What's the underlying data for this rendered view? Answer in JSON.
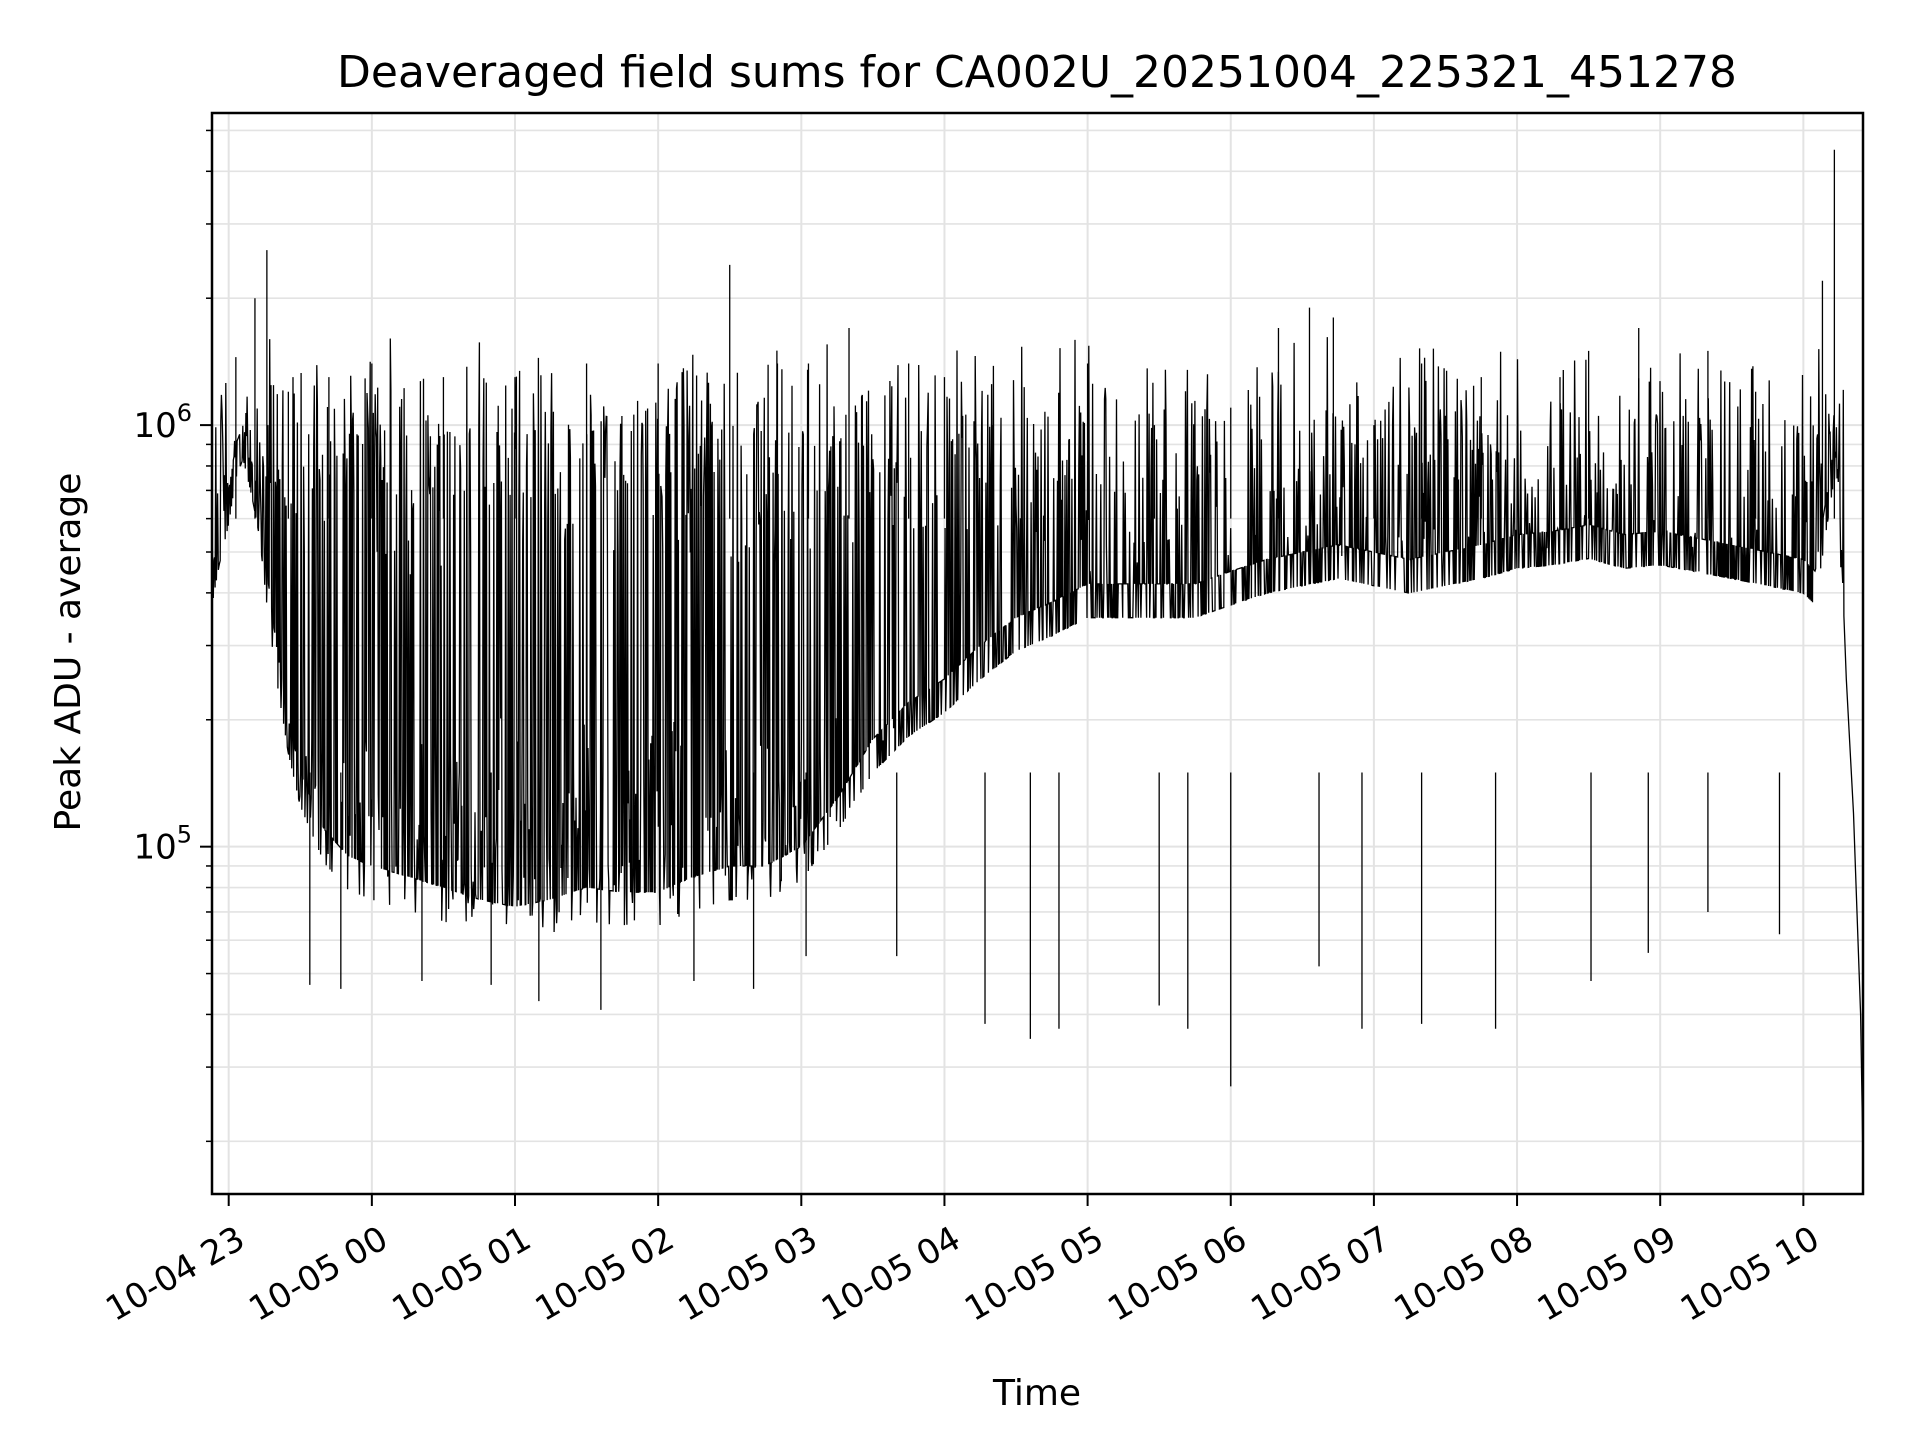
{
  "chart_data": {
    "type": "line",
    "title": "Deaveraged field sums for CA002U_20251004_225321_451278",
    "xlabel": "Time",
    "ylabel": "Peak ADU - average",
    "x_axis": "time",
    "xlim": [
      "2025-10-04 22:53",
      "2025-10-05 10:25"
    ],
    "y_scale": "log",
    "ylim": [
      15000,
      5500000
    ],
    "grid": true,
    "line_color": "#000000",
    "x_ticks": [
      {
        "label": "10-04 23",
        "value": "2025-10-04 23:00"
      },
      {
        "label": "10-05 00",
        "value": "2025-10-05 00:00"
      },
      {
        "label": "10-05 01",
        "value": "2025-10-05 01:00"
      },
      {
        "label": "10-05 02",
        "value": "2025-10-05 02:00"
      },
      {
        "label": "10-05 03",
        "value": "2025-10-05 03:00"
      },
      {
        "label": "10-05 04",
        "value": "2025-10-05 04:00"
      },
      {
        "label": "10-05 05",
        "value": "2025-10-05 05:00"
      },
      {
        "label": "10-05 06",
        "value": "2025-10-05 06:00"
      },
      {
        "label": "10-05 07",
        "value": "2025-10-05 07:00"
      },
      {
        "label": "10-05 08",
        "value": "2025-10-05 08:00"
      },
      {
        "label": "10-05 09",
        "value": "2025-10-05 09:00"
      },
      {
        "label": "10-05 10",
        "value": "2025-10-05 10:00"
      }
    ],
    "y_ticks": [
      {
        "base": "10",
        "exp": "5",
        "value": 100000
      },
      {
        "base": "10",
        "exp": "6",
        "value": 1000000
      }
    ],
    "series": [
      {
        "points": [
          [
            "2025-10-04 22:53",
            450000
          ],
          [
            "2025-10-04 22:56",
            560000
          ],
          [
            "2025-10-04 23:00",
            700000
          ],
          [
            "2025-10-04 23:03",
            900000
          ],
          [
            "2025-10-04 23:06",
            1000000
          ],
          [
            "2025-10-04 23:10",
            800000
          ],
          [
            "2025-10-04 23:13",
            650000
          ],
          [
            "2025-10-04 23:16",
            450000
          ],
          [
            "2025-10-04 23:20",
            300000
          ],
          [
            "2025-10-04 23:25",
            200000
          ],
          [
            "2025-10-04 23:30",
            150000
          ],
          [
            "2025-10-04 23:40",
            110000
          ],
          [
            "2025-10-04 23:50",
            95000
          ],
          [
            "2025-10-05 00:00",
            90000
          ],
          [
            "2025-10-05 00:15",
            85000
          ],
          [
            "2025-10-05 00:30",
            80000
          ],
          [
            "2025-10-05 00:45",
            75000
          ],
          [
            "2025-10-05 01:00",
            72000
          ],
          [
            "2025-10-05 01:15",
            75000
          ],
          [
            "2025-10-05 01:30",
            80000
          ],
          [
            "2025-10-05 01:45",
            78000
          ],
          [
            "2025-10-05 02:00",
            78000
          ],
          [
            "2025-10-05 02:15",
            85000
          ],
          [
            "2025-10-05 02:30",
            90000
          ],
          [
            "2025-10-05 02:45",
            90000
          ],
          [
            "2025-10-05 03:00",
            100000
          ],
          [
            "2025-10-05 03:15",
            130000
          ],
          [
            "2025-10-05 03:30",
            180000
          ],
          [
            "2025-10-05 03:45",
            220000
          ],
          [
            "2025-10-05 04:00",
            250000
          ],
          [
            "2025-10-05 04:15",
            300000
          ],
          [
            "2025-10-05 04:30",
            350000
          ],
          [
            "2025-10-05 04:45",
            380000
          ],
          [
            "2025-10-05 05:00",
            420000
          ],
          [
            "2025-10-05 05:15",
            420000
          ],
          [
            "2025-10-05 05:30",
            420000
          ],
          [
            "2025-10-05 05:45",
            420000
          ],
          [
            "2025-10-05 06:00",
            450000
          ],
          [
            "2025-10-05 06:15",
            480000
          ],
          [
            "2025-10-05 06:30",
            500000
          ],
          [
            "2025-10-05 06:45",
            520000
          ],
          [
            "2025-10-05 07:00",
            500000
          ],
          [
            "2025-10-05 07:15",
            480000
          ],
          [
            "2025-10-05 07:30",
            500000
          ],
          [
            "2025-10-05 07:45",
            520000
          ],
          [
            "2025-10-05 08:00",
            550000
          ],
          [
            "2025-10-05 08:15",
            560000
          ],
          [
            "2025-10-05 08:30",
            580000
          ],
          [
            "2025-10-05 08:45",
            550000
          ],
          [
            "2025-10-05 09:00",
            560000
          ],
          [
            "2025-10-05 09:15",
            540000
          ],
          [
            "2025-10-05 09:30",
            520000
          ],
          [
            "2025-10-05 09:45",
            500000
          ],
          [
            "2025-10-05 10:00",
            480000
          ],
          [
            "2025-10-05 10:05",
            450000
          ],
          [
            "2025-10-05 10:10",
            700000
          ],
          [
            "2025-10-05 10:13",
            900000
          ],
          [
            "2025-10-05 10:15",
            700000
          ],
          [
            "2025-10-05 10:18",
            250000
          ],
          [
            "2025-10-05 10:21",
            120000
          ],
          [
            "2025-10-05 10:24",
            40000
          ],
          [
            "2025-10-05 10:25",
            18000
          ]
        ],
        "spike_lows": [
          [
            "2025-10-04 23:34",
            47000
          ],
          [
            "2025-10-04 23:47",
            46000
          ],
          [
            "2025-10-05 00:21",
            48000
          ],
          [
            "2025-10-05 00:50",
            47000
          ],
          [
            "2025-10-05 01:10",
            43000
          ],
          [
            "2025-10-05 01:36",
            41000
          ],
          [
            "2025-10-05 02:15",
            48000
          ],
          [
            "2025-10-05 02:40",
            46000
          ],
          [
            "2025-10-05 03:02",
            55000
          ],
          [
            "2025-10-05 03:40",
            55000
          ],
          [
            "2025-10-05 04:17",
            38000
          ],
          [
            "2025-10-05 04:36",
            35000
          ],
          [
            "2025-10-05 04:48",
            37000
          ],
          [
            "2025-10-05 05:30",
            42000
          ],
          [
            "2025-10-05 05:42",
            37000
          ],
          [
            "2025-10-05 06:00",
            27000
          ],
          [
            "2025-10-05 06:37",
            52000
          ],
          [
            "2025-10-05 06:55",
            37000
          ],
          [
            "2025-10-05 07:20",
            38000
          ],
          [
            "2025-10-05 07:51",
            37000
          ],
          [
            "2025-10-05 08:31",
            48000
          ],
          [
            "2025-10-05 08:55",
            56000
          ],
          [
            "2025-10-05 09:20",
            70000
          ],
          [
            "2025-10-05 09:50",
            62000
          ]
        ],
        "spike_highs": [
          [
            "2025-10-04 23:03",
            1450000
          ],
          [
            "2025-10-04 23:11",
            2000000
          ],
          [
            "2025-10-04 23:16",
            2600000
          ],
          [
            "2025-10-04 23:25",
            1200000
          ],
          [
            "2025-10-04 23:42",
            1300000
          ],
          [
            "2025-10-05 00:00",
            1400000
          ],
          [
            "2025-10-05 00:30",
            1300000
          ],
          [
            "2025-10-05 01:00",
            1300000
          ],
          [
            "2025-10-05 01:30",
            1400000
          ],
          [
            "2025-10-05 02:00",
            1400000
          ],
          [
            "2025-10-05 02:30",
            2400000
          ],
          [
            "2025-10-05 02:50",
            1400000
          ],
          [
            "2025-10-05 03:03",
            1400000
          ],
          [
            "2025-10-05 03:20",
            1700000
          ],
          [
            "2025-10-05 03:45",
            1400000
          ],
          [
            "2025-10-05 04:00",
            1300000
          ],
          [
            "2025-10-05 04:20",
            1000000
          ],
          [
            "2025-10-05 05:00",
            1400000
          ],
          [
            "2025-10-05 05:28",
            1000000
          ],
          [
            "2025-10-05 06:00",
            1100000
          ],
          [
            "2025-10-05 06:20",
            1700000
          ],
          [
            "2025-10-05 06:33",
            1900000
          ],
          [
            "2025-10-05 06:43",
            1800000
          ],
          [
            "2025-10-05 07:00",
            1000000
          ],
          [
            "2025-10-05 07:20",
            1400000
          ],
          [
            "2025-10-05 07:45",
            1300000
          ],
          [
            "2025-10-05 08:18",
            1300000
          ],
          [
            "2025-10-05 08:30",
            1500000
          ],
          [
            "2025-10-05 08:51",
            1700000
          ],
          [
            "2025-10-05 09:20",
            1500000
          ],
          [
            "2025-10-05 09:40",
            1200000
          ],
          [
            "2025-10-05 10:08",
            2200000
          ],
          [
            "2025-10-05 10:13",
            4500000
          ]
        ]
      }
    ]
  }
}
